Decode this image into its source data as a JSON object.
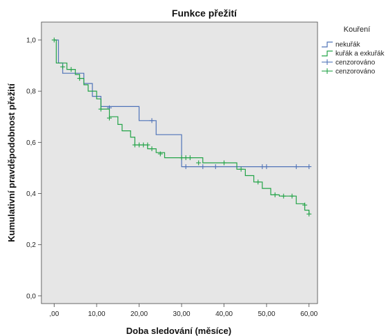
{
  "chart_data": {
    "type": "line",
    "title": "Funkce přežití",
    "xlabel": "Doba sledování (měsíce)",
    "ylabel": "Kumulativní pravděpodobnost přežití",
    "xlim": [
      -3,
      62
    ],
    "ylim": [
      -0.03,
      1.07
    ],
    "xticks": [
      0,
      10,
      20,
      30,
      40,
      50,
      60
    ],
    "xtick_labels": [
      ",00",
      "10,00",
      "20,00",
      "30,00",
      "40,00",
      "50,00",
      "60,00"
    ],
    "yticks": [
      0,
      0.2,
      0.4,
      0.6,
      0.8,
      1.0
    ],
    "ytick_labels": [
      "0,0",
      "0,2",
      "0,4",
      "0,6",
      "0,8",
      "1,0"
    ],
    "grid": false,
    "legend_title": "Kouření",
    "legend_position": "right",
    "series": [
      {
        "name": "nekuřák",
        "color": "#4f73b8",
        "steps": [
          [
            0,
            1.0
          ],
          [
            1,
            0.91
          ],
          [
            2,
            0.87
          ],
          [
            7,
            0.83
          ],
          [
            9,
            0.78
          ],
          [
            11,
            0.74
          ],
          [
            20,
            0.685
          ],
          [
            24,
            0.63
          ],
          [
            30,
            0.505
          ],
          [
            60,
            0.505
          ]
        ],
        "censored": [
          [
            13,
            0.735
          ],
          [
            23,
            0.685
          ],
          [
            31,
            0.505
          ],
          [
            35,
            0.505
          ],
          [
            38,
            0.505
          ],
          [
            49,
            0.505
          ],
          [
            50,
            0.505
          ],
          [
            57,
            0.505
          ],
          [
            60,
            0.505
          ]
        ]
      },
      {
        "name": "kuřák a exkuřák",
        "color": "#22a347",
        "steps": [
          [
            0,
            1.0
          ],
          [
            0.5,
            0.91
          ],
          [
            3,
            0.885
          ],
          [
            5,
            0.865
          ],
          [
            6,
            0.85
          ],
          [
            7,
            0.825
          ],
          [
            8,
            0.8
          ],
          [
            10,
            0.77
          ],
          [
            11,
            0.73
          ],
          [
            13,
            0.7
          ],
          [
            15,
            0.67
          ],
          [
            16,
            0.645
          ],
          [
            18,
            0.62
          ],
          [
            19,
            0.59
          ],
          [
            22,
            0.575
          ],
          [
            24,
            0.56
          ],
          [
            26,
            0.54
          ],
          [
            35,
            0.52
          ],
          [
            43,
            0.495
          ],
          [
            45,
            0.47
          ],
          [
            47,
            0.445
          ],
          [
            49,
            0.42
          ],
          [
            51,
            0.395
          ],
          [
            53,
            0.39
          ],
          [
            57,
            0.36
          ],
          [
            59,
            0.335
          ],
          [
            60,
            0.32
          ],
          [
            60,
            0.32
          ]
        ],
        "censored": [
          [
            0,
            1.0
          ],
          [
            2,
            0.895
          ],
          [
            4,
            0.885
          ],
          [
            6,
            0.85
          ],
          [
            11,
            0.73
          ],
          [
            13,
            0.695
          ],
          [
            19,
            0.59
          ],
          [
            20,
            0.59
          ],
          [
            21,
            0.59
          ],
          [
            22,
            0.59
          ],
          [
            23,
            0.575
          ],
          [
            25,
            0.555
          ],
          [
            30,
            0.54
          ],
          [
            31,
            0.54
          ],
          [
            32,
            0.54
          ],
          [
            34,
            0.52
          ],
          [
            40,
            0.52
          ],
          [
            44,
            0.495
          ],
          [
            48,
            0.445
          ],
          [
            52,
            0.395
          ],
          [
            54,
            0.39
          ],
          [
            56,
            0.39
          ],
          [
            59,
            0.355
          ],
          [
            60,
            0.32
          ]
        ]
      }
    ],
    "legend_entries": [
      {
        "label": "nekuřák",
        "kind": "line",
        "color": "#4f73b8"
      },
      {
        "label": "kuřák a exkuřák",
        "kind": "line",
        "color": "#22a347"
      },
      {
        "label": "cenzorováno",
        "kind": "censor",
        "color": "#4f73b8"
      },
      {
        "label": "cenzorováno",
        "kind": "censor",
        "color": "#22a347"
      }
    ]
  }
}
